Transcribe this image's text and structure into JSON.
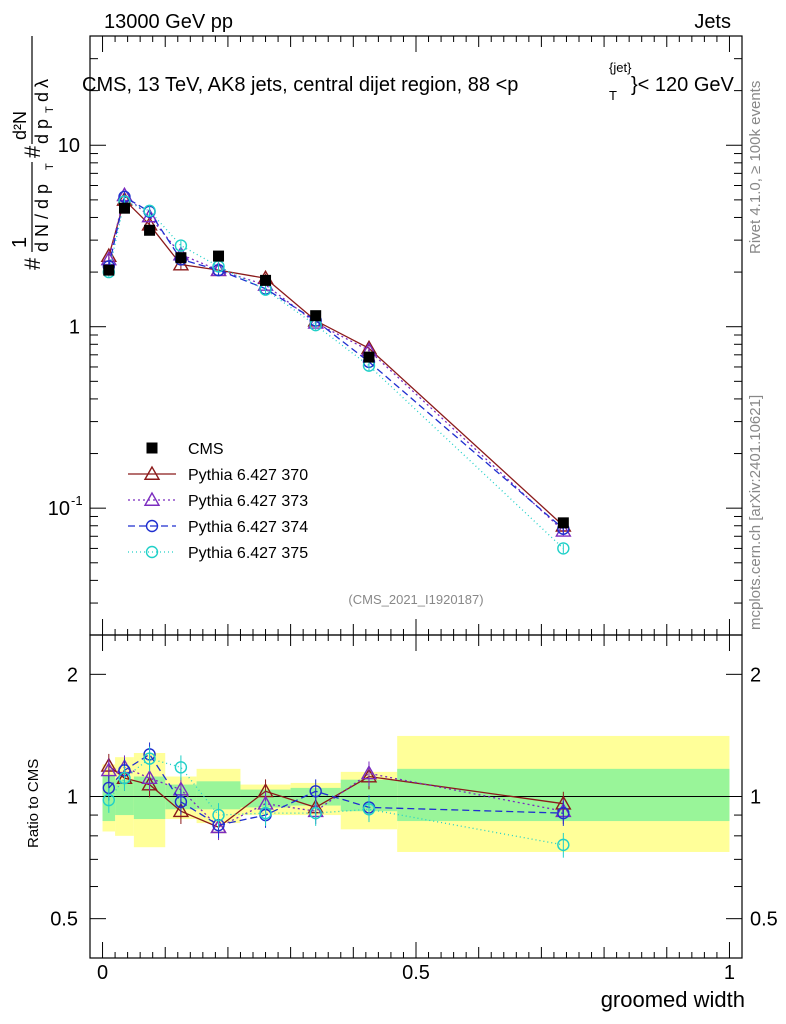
{
  "header": {
    "left": "13000 GeV pp",
    "right": "Jets",
    "title_main": "CMS, 13 TeV, AK8 jets, central dijet region, 88 <p",
    "title_sub": "T",
    "title_sup": "{jet}",
    "title_tail": "}< 120 GeV",
    "side_top": "Rivet 4.1.0, ≥ 100k events",
    "side_bottom": "mcplots.cern.ch [arXiv:2401.10621]",
    "watermark": "(CMS_2021_I1920187)"
  },
  "chart_data": {
    "type": "scatter",
    "xlabel": "groomed width",
    "ylabel_main": "# 1 / dN/dpT # d²N / dpT dλ",
    "ylabel_ratio": "Ratio to CMS",
    "xlim": [
      0,
      1
    ],
    "ylim_main": [
      0.02,
      40
    ],
    "ylim_ratio": [
      0.4,
      2.5
    ],
    "x_ticks": [
      "0",
      "0.5",
      "1"
    ],
    "main_ticks": [
      "10",
      "1",
      "10^-1"
    ],
    "ratio_ticks": [
      "2",
      "1",
      "0.5"
    ],
    "bins": [
      0.0,
      0.02,
      0.05,
      0.1,
      0.15,
      0.22,
      0.3,
      0.38,
      0.47,
      1.0
    ],
    "data": {
      "name": "CMS",
      "x": [
        0.01,
        0.035,
        0.075,
        0.125,
        0.185,
        0.26,
        0.34,
        0.425,
        0.735
      ],
      "y": [
        2.05,
        4.5,
        3.4,
        2.4,
        2.45,
        1.8,
        1.15,
        0.68,
        0.083
      ]
    },
    "bands": {
      "inner": [
        [
          0.87,
          1.13
        ],
        [
          0.9,
          1.1
        ],
        [
          0.88,
          1.12
        ],
        [
          0.93,
          1.07
        ],
        [
          0.93,
          1.09
        ],
        [
          0.94,
          1.04
        ],
        [
          0.95,
          1.05
        ],
        [
          0.92,
          1.1
        ],
        [
          0.87,
          1.17
        ]
      ],
      "outer": [
        [
          0.82,
          1.2
        ],
        [
          0.8,
          1.25
        ],
        [
          0.75,
          1.28
        ],
        [
          0.88,
          1.12
        ],
        [
          0.86,
          1.17
        ],
        [
          0.9,
          1.07
        ],
        [
          0.9,
          1.08
        ],
        [
          0.83,
          1.15
        ],
        [
          0.73,
          1.41
        ]
      ]
    },
    "series": [
      {
        "name": "Pythia 6.427 370",
        "color": "#8b1a1a",
        "marker": "triangle",
        "dash": "",
        "y": [
          2.45,
          5.0,
          3.65,
          2.2,
          2.05,
          1.85,
          1.08,
          0.76,
          0.08
        ],
        "ratio": [
          1.19,
          1.11,
          1.07,
          0.92,
          0.84,
          1.03,
          0.94,
          1.12,
          0.96
        ]
      },
      {
        "name": "Pythia 6.427 373",
        "color": "#7b2cbf",
        "marker": "triangle",
        "dash": "2,3",
        "y": [
          2.35,
          5.3,
          4.05,
          2.5,
          2.05,
          1.7,
          1.05,
          0.74,
          0.075
        ],
        "ratio": [
          1.16,
          1.18,
          1.11,
          1.04,
          0.84,
          0.96,
          0.92,
          1.14,
          0.92
        ]
      },
      {
        "name": "Pythia 6.427 374",
        "color": "#1f2fcf",
        "marker": "circle",
        "dash": "7,4",
        "y": [
          2.15,
          5.2,
          4.3,
          2.35,
          2.05,
          1.62,
          1.08,
          0.64,
          0.077
        ],
        "ratio": [
          1.05,
          1.16,
          1.27,
          0.97,
          0.85,
          0.9,
          1.03,
          0.94,
          0.91
        ]
      },
      {
        "name": "Pythia 6.427 375",
        "color": "#20d0c8",
        "marker": "circle",
        "dash": "1,3",
        "y": [
          2.0,
          4.9,
          4.35,
          2.8,
          2.15,
          1.6,
          1.02,
          0.61,
          0.06
        ],
        "ratio": [
          0.98,
          1.11,
          1.24,
          1.18,
          0.9,
          0.91,
          0.91,
          0.93,
          0.76
        ]
      }
    ]
  }
}
